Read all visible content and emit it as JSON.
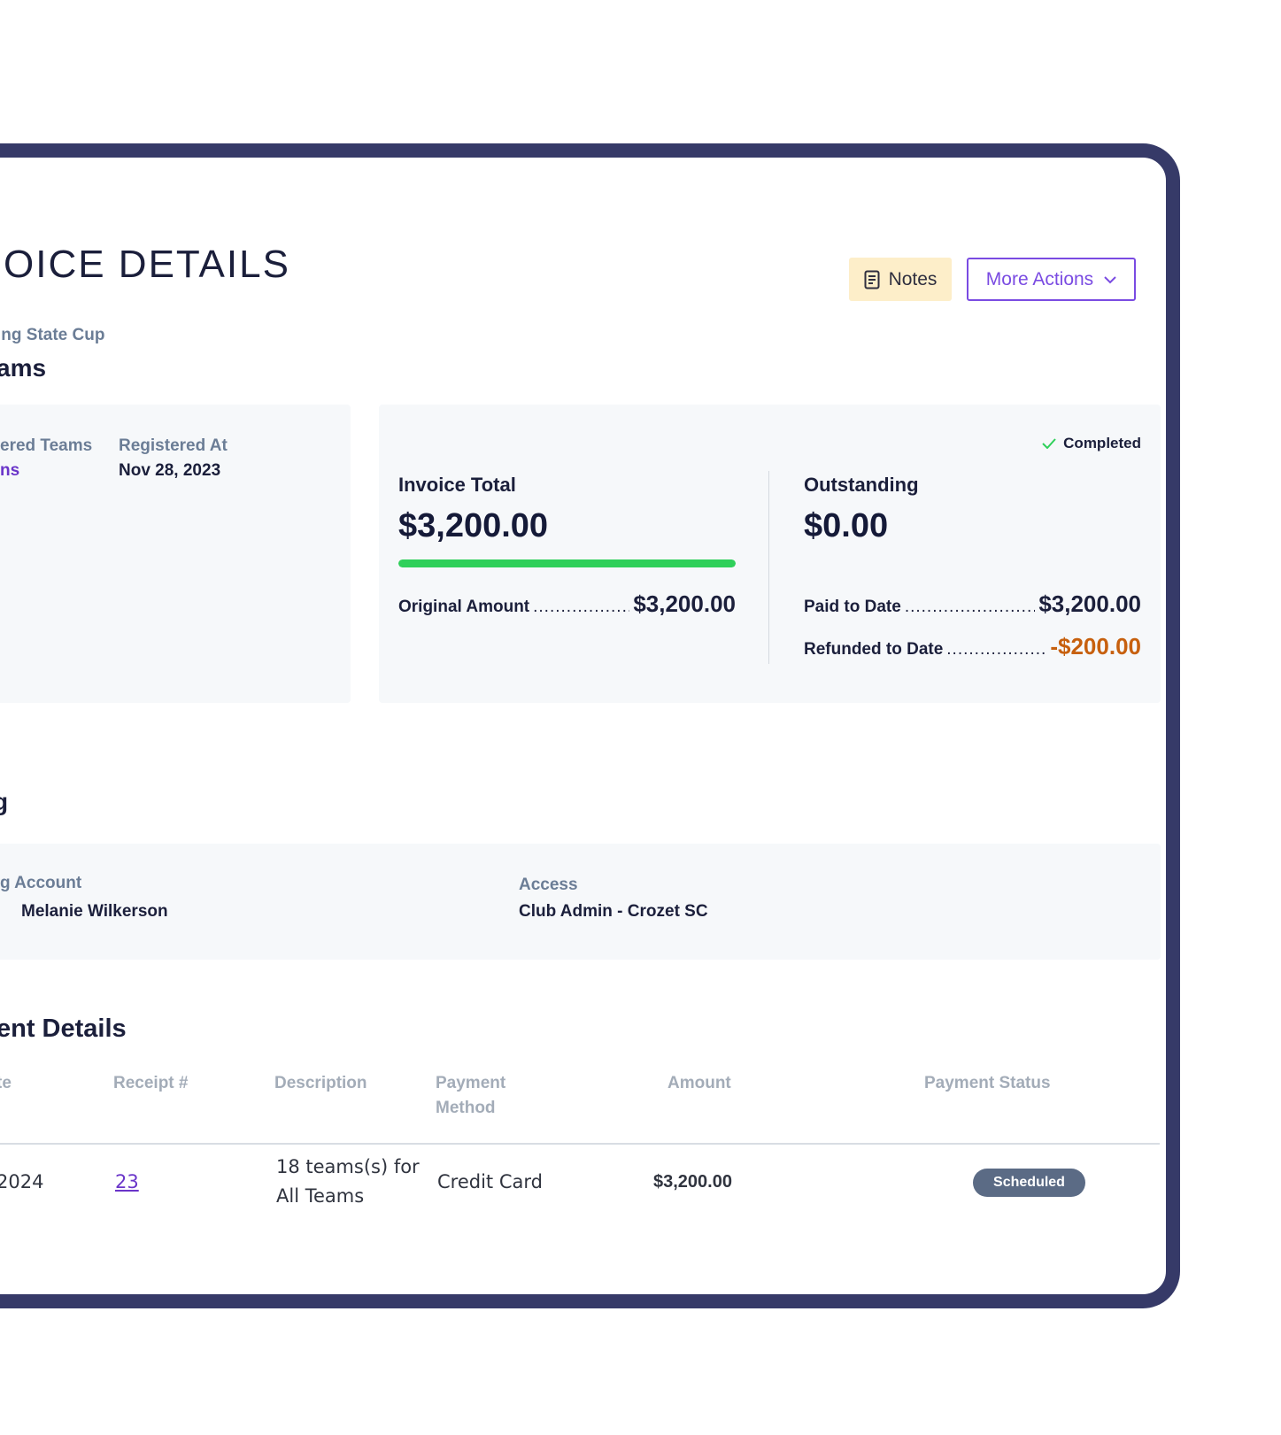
{
  "header": {
    "title": "OICE DETAILS",
    "notes_label": "Notes",
    "more_actions_label": "More Actions"
  },
  "event": {
    "name": "ing State Cup",
    "group": "ams"
  },
  "registration": {
    "teams_label": "ered Teams",
    "teams_value": "ns",
    "registered_at_label": "Registered At",
    "registered_at_value": "Nov 28, 2023"
  },
  "totals": {
    "status": "Completed",
    "invoice_total_label": "Invoice Total",
    "invoice_total": "$3,200.00",
    "paid_fraction": 1.0,
    "original_amount_label": "Original Amount",
    "original_amount": "$3,200.00",
    "outstanding_label": "Outstanding",
    "outstanding": "$0.00",
    "paid_to_date_label": "Paid to Date",
    "paid_to_date": "$3,200.00",
    "refunded_label": "Refunded to Date",
    "refunded": "-$200.00"
  },
  "account": {
    "section_fragment": "g",
    "account_label": "g Account",
    "account_value": "Melanie Wilkerson",
    "access_label": "Access",
    "access_value": "Club Admin - Crozet SC"
  },
  "payments": {
    "section_title": "ent Details",
    "columns": {
      "date": "te",
      "receipt": "Receipt #",
      "description": "Description",
      "method_line1": "Payment",
      "method_line2": "Method",
      "amount": "Amount",
      "status": "Payment Status"
    },
    "rows": [
      {
        "date": "2024",
        "receipt": "23",
        "description_line1": "18 teams(s) for",
        "description_line2": "All Teams",
        "method": "Credit Card",
        "amount": "$3,200.00",
        "status": "Scheduled"
      }
    ]
  },
  "colors": {
    "frame": "#363a68",
    "accent": "#7a4be2",
    "progress": "#2fd05a",
    "refund": "#c7600e",
    "notes_bg": "#fdeec9",
    "status_badge": "#5b6b85"
  }
}
